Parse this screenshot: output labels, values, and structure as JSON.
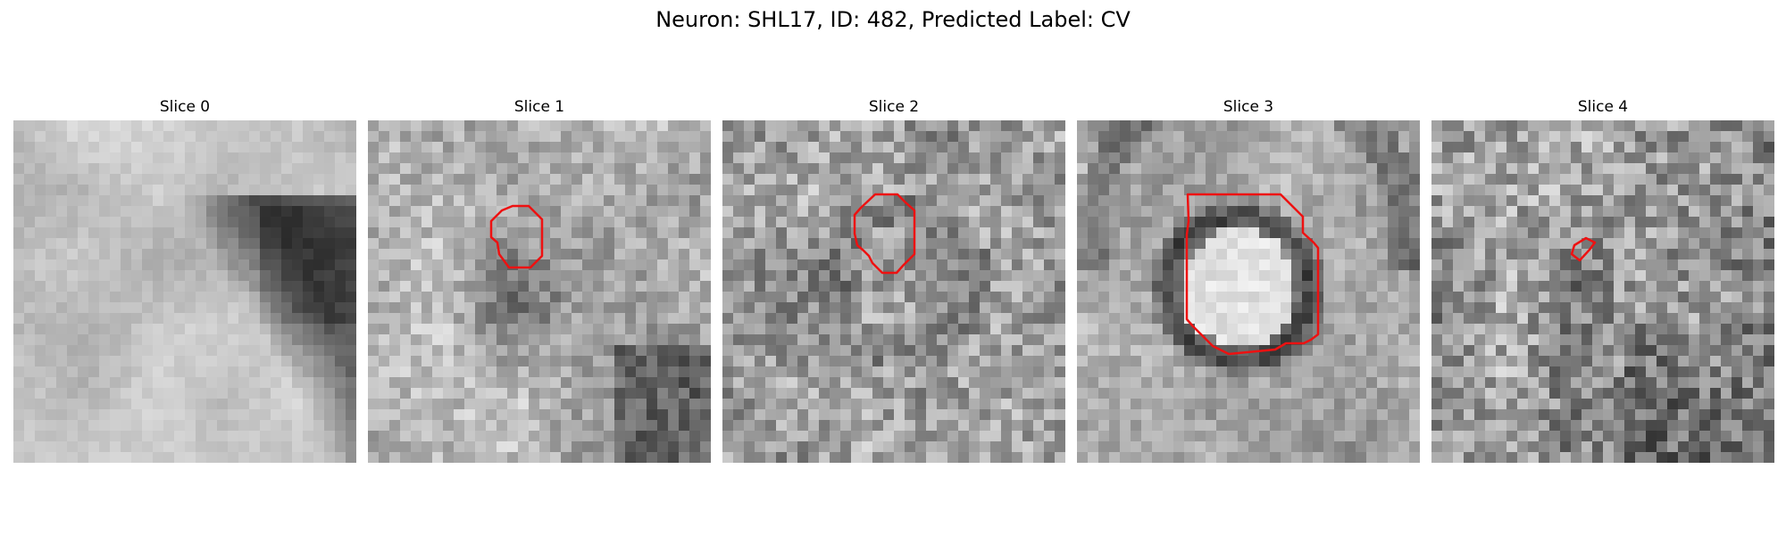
{
  "figure": {
    "title": "Neuron: SHL17, ID: 482, Predicted Label: CV"
  },
  "colors": {
    "contour": "#ee1111",
    "background": "#ffffff"
  },
  "panels": [
    {
      "title": "Slice 0",
      "has_contour": false
    },
    {
      "title": "Slice 1",
      "has_contour": true
    },
    {
      "title": "Slice 2",
      "has_contour": true
    },
    {
      "title": "Slice 3",
      "has_contour": true
    },
    {
      "title": "Slice 4",
      "has_contour": true
    }
  ]
}
